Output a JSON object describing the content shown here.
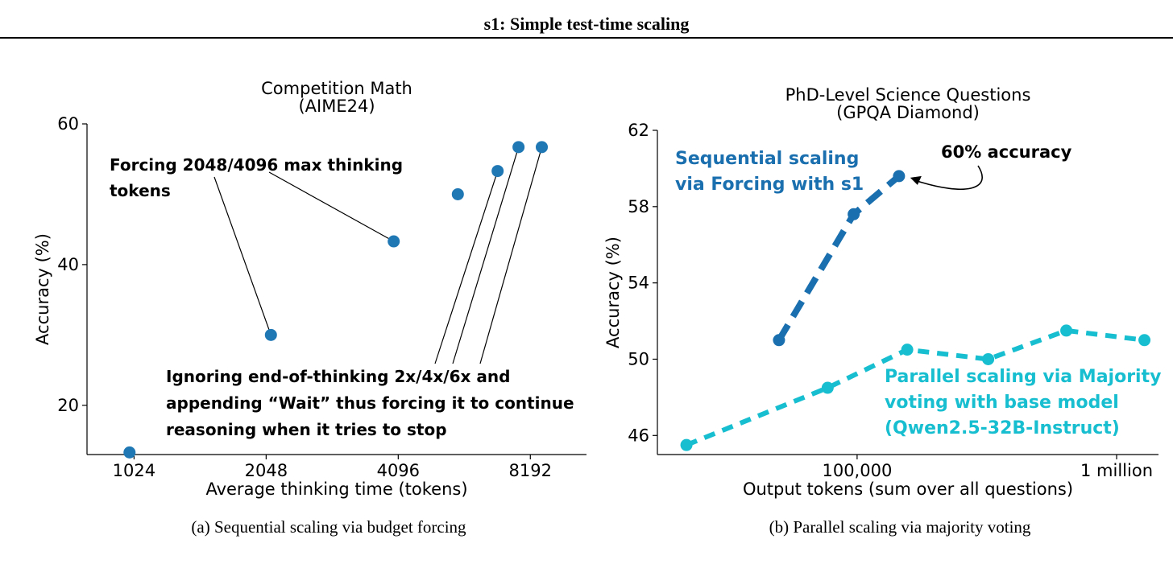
{
  "header": {
    "title": "s1: Simple test-time scaling"
  },
  "chart_data": [
    {
      "type": "scatter",
      "title": "Competition Math\n(AIME24)",
      "xlabel": "Average thinking time (tokens)",
      "ylabel": "Accuracy (%)",
      "x_scale": "log2",
      "xlim": [
        800,
        11000
      ],
      "ylim": [
        13,
        60
      ],
      "x_ticks": [
        1024,
        2048,
        4096,
        8192
      ],
      "x_tick_labels": [
        "1024",
        "2048",
        "4096",
        "8192"
      ],
      "y_ticks": [
        20,
        40,
        60
      ],
      "y_tick_labels": [
        "20",
        "40",
        "60"
      ],
      "color": "#1f77b4",
      "points": [
        {
          "x": 1000,
          "y": 13.3
        },
        {
          "x": 2100,
          "y": 30.0
        },
        {
          "x": 4000,
          "y": 43.3
        },
        {
          "x": 5600,
          "y": 50.0
        },
        {
          "x": 6900,
          "y": 53.3
        },
        {
          "x": 7700,
          "y": 56.7
        },
        {
          "x": 8700,
          "y": 56.7
        }
      ],
      "annotations": [
        {
          "text": "Forcing 2048/4096 max thinking\ntokens",
          "points": [
            1,
            2
          ]
        },
        {
          "text": "Ignoring end-of-thinking 2x/4x/6x and\nappending “Wait” thus forcing it to continue\nreasoning when it tries to stop",
          "points": [
            4,
            5,
            6
          ]
        }
      ],
      "caption": "(a)  Sequential scaling via budget forcing"
    },
    {
      "type": "line",
      "title": "PhD-Level Science Questions\n(GPQA Diamond)",
      "xlabel": "Output tokens (sum over all questions)",
      "ylabel": "Accuracy (%)",
      "x_scale": "log10",
      "xlim": [
        17000,
        1450000
      ],
      "ylim": [
        45,
        62
      ],
      "x_ticks": [
        100000,
        1000000
      ],
      "x_tick_labels": [
        "100,000",
        "1 million"
      ],
      "y_ticks": [
        46,
        50,
        54,
        58,
        62
      ],
      "y_tick_labels": [
        "46",
        "50",
        "54",
        "58",
        "62"
      ],
      "series": [
        {
          "name": "Sequential scaling\nvia Forcing with s1",
          "color": "#1a6fae",
          "x": [
            50000,
            97000,
            145000
          ],
          "y": [
            51.0,
            57.6,
            59.6
          ]
        },
        {
          "name": "Parallel scaling via Majority\nvoting with base model\n(Qwen2.5-32B-Instruct)",
          "color": "#17becf",
          "x": [
            22000,
            77000,
            156000,
            320000,
            640000,
            1280000
          ],
          "y": [
            45.5,
            48.5,
            50.5,
            50.0,
            51.5,
            51.0
          ]
        }
      ],
      "annotations": [
        {
          "text": "60% accuracy",
          "series": 0,
          "point": 2
        }
      ],
      "caption": "(b)  Parallel scaling via majority voting"
    }
  ]
}
